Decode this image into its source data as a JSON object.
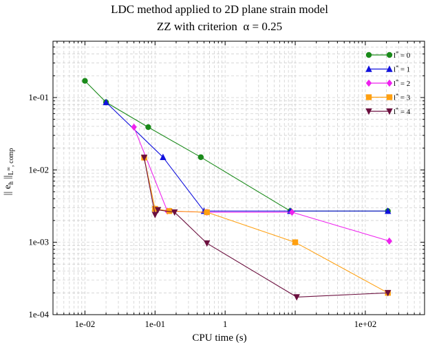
{
  "chart_data": {
    "type": "line",
    "title": "LDC method applied to 2D plane strain model",
    "subtitle": "ZZ with criterion  α = 0.25",
    "xlabel": "CPU time (s)",
    "ylabel": {
      "main": "|| e",
      "sub1": "h",
      "mid": " ||",
      "sub2": "L",
      "sup": "∞",
      "sub3": ", comp"
    },
    "x_scale": "log",
    "y_scale": "log",
    "xlim": [
      0.0035,
      700
    ],
    "ylim": [
      0.0001,
      0.6
    ],
    "x_ticks": [
      {
        "v": 0.01,
        "label": "1e-02"
      },
      {
        "v": 0.1,
        "label": "1e-01"
      },
      {
        "v": 1,
        "label": "1"
      },
      {
        "v": 10,
        "label": ""
      },
      {
        "v": 100,
        "label": "1e+02"
      }
    ],
    "y_ticks": [
      {
        "v": 0.1,
        "label": "1e-01"
      },
      {
        "v": 0.01,
        "label": "1e-02"
      },
      {
        "v": 0.001,
        "label": "1e-03"
      },
      {
        "v": 0.0001,
        "label": "1e-04"
      }
    ],
    "grid": true,
    "legend_position": "top-right",
    "series": [
      {
        "name": "l* = 0",
        "color": "#1a8a1a",
        "marker": "circle",
        "x": [
          0.01,
          0.02,
          0.08,
          0.45,
          8.5,
          210
        ],
        "y": [
          0.17,
          0.086,
          0.039,
          0.015,
          0.0027,
          0.0027
        ]
      },
      {
        "name": "l* = 1",
        "color": "#1111dd",
        "marker": "triangle-up",
        "x": [
          0.02,
          0.13,
          0.5,
          8.5,
          210
        ],
        "y": [
          0.086,
          0.015,
          0.0027,
          0.0027,
          0.0027
        ]
      },
      {
        "name": "l* = 2",
        "color": "#ee22ee",
        "marker": "diamond",
        "x": [
          0.05,
          0.15,
          0.55,
          9,
          220
        ],
        "y": [
          0.039,
          0.0027,
          0.0026,
          0.0026,
          0.00104
        ]
      },
      {
        "name": "l* = 3",
        "color": "#ffa010",
        "marker": "square",
        "x": [
          0.07,
          0.1,
          0.16,
          0.55,
          10,
          210
        ],
        "y": [
          0.0148,
          0.0029,
          0.0027,
          0.0026,
          0.001,
          0.0002
        ]
      },
      {
        "name": "l* = 4",
        "color": "#6b0f3e",
        "marker": "triangle-down",
        "x": [
          0.07,
          0.1,
          0.11,
          0.19,
          0.55,
          10.5,
          210
        ],
        "y": [
          0.0148,
          0.0024,
          0.0028,
          0.0026,
          0.00097,
          0.000175,
          0.0002
        ]
      }
    ]
  }
}
